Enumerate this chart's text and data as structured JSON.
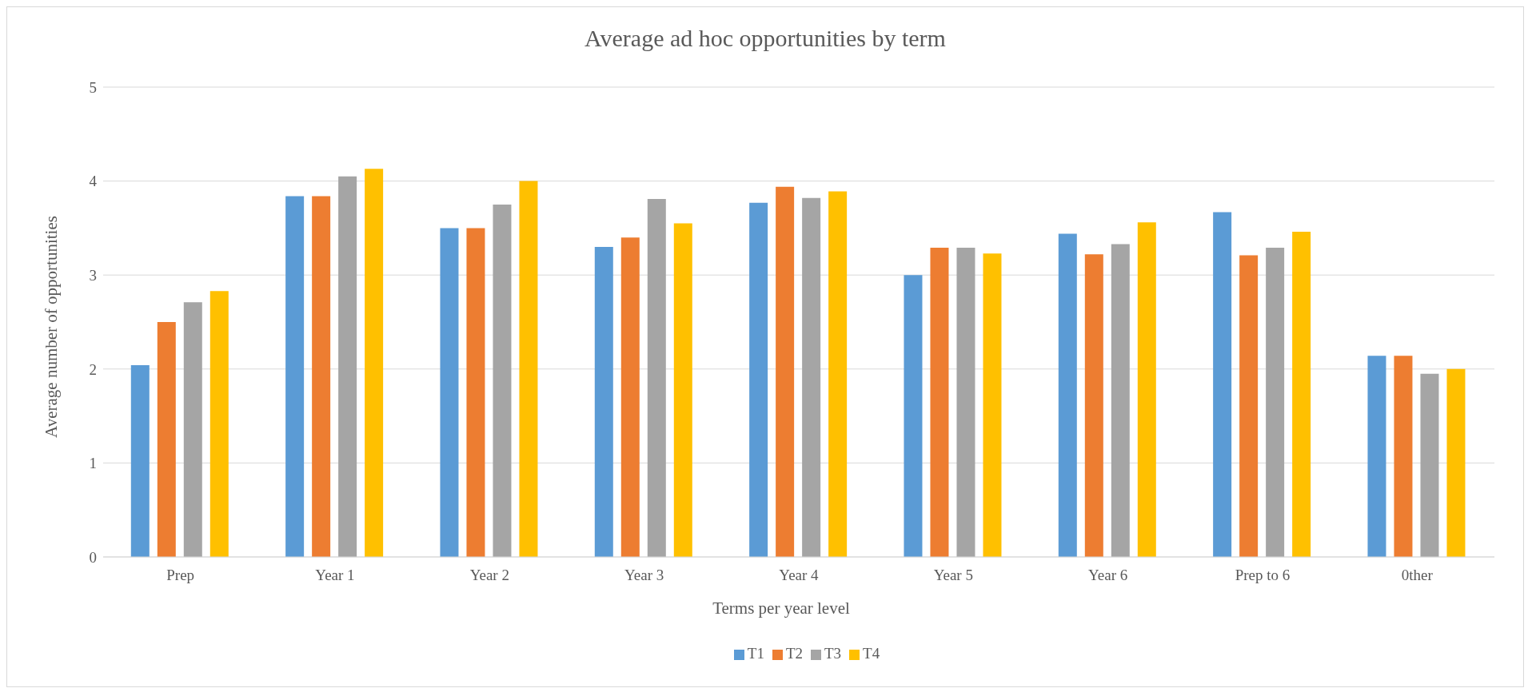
{
  "chart_data": {
    "type": "bar",
    "title": "Average ad hoc opportunities by term",
    "xlabel": "Terms per year level",
    "ylabel": "Average number of opportunities",
    "categories": [
      "Prep",
      "Year 1",
      "Year 2",
      "Year 3",
      "Year 4",
      "Year 5",
      "Year 6",
      "Prep to 6",
      "0ther"
    ],
    "series": [
      {
        "name": "T1",
        "color": "#5b9bd5",
        "values": [
          2.04,
          3.84,
          3.5,
          3.3,
          3.77,
          3.0,
          3.44,
          3.67,
          2.14
        ]
      },
      {
        "name": "T2",
        "color": "#ed7d31",
        "values": [
          2.5,
          3.84,
          3.5,
          3.4,
          3.94,
          3.29,
          3.22,
          3.21,
          2.14
        ]
      },
      {
        "name": "T3",
        "color": "#a5a5a5",
        "values": [
          2.71,
          4.05,
          3.75,
          3.81,
          3.82,
          3.29,
          3.33,
          3.29,
          1.95
        ]
      },
      {
        "name": "T4",
        "color": "#ffc000",
        "values": [
          2.83,
          4.13,
          4.0,
          3.55,
          3.89,
          3.23,
          3.56,
          3.46,
          2.0
        ]
      }
    ],
    "ylim": [
      0,
      5
    ],
    "yticks": [
      0,
      1,
      2,
      3,
      4,
      5
    ],
    "grid": "y",
    "legend": "bottom"
  }
}
